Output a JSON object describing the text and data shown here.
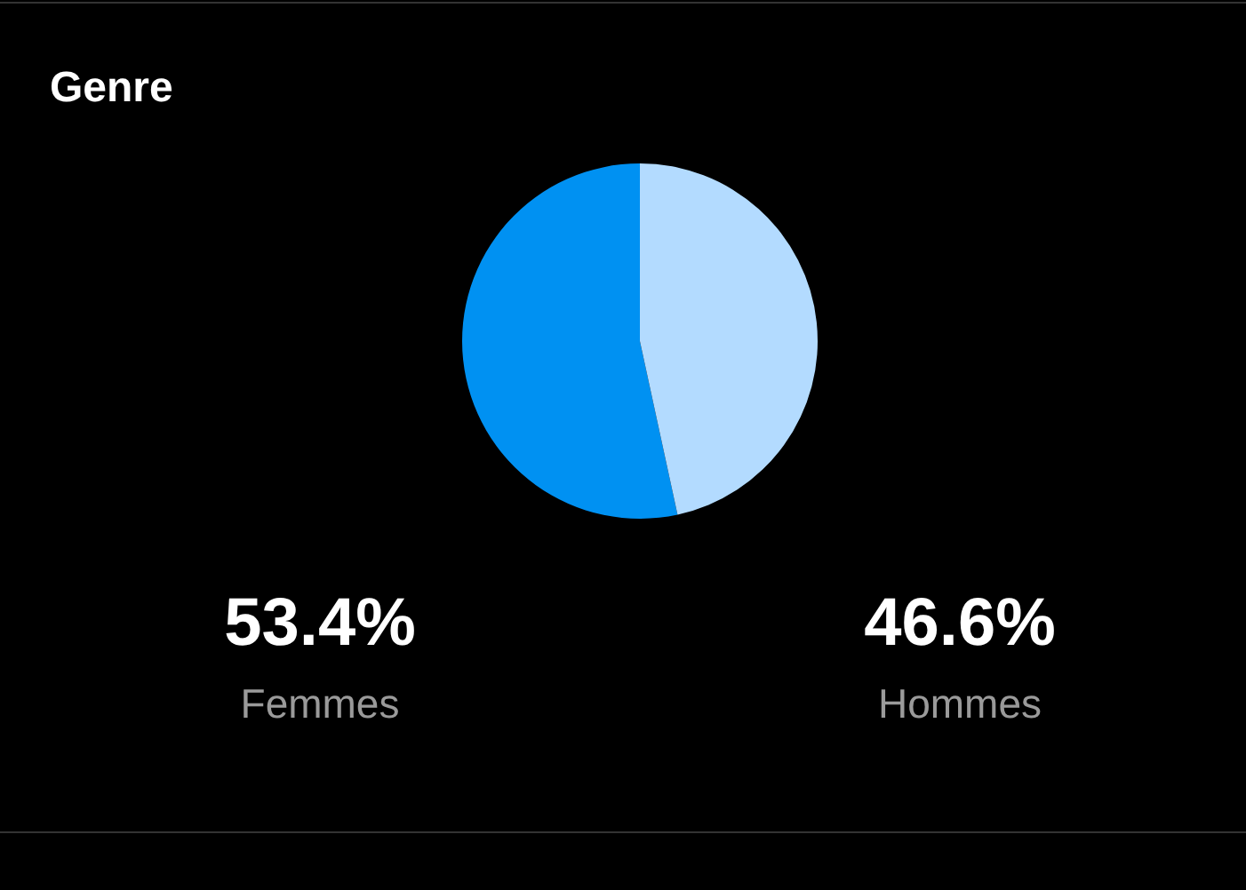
{
  "chart_data": {
    "type": "pie",
    "title": "Genre",
    "categories": [
      "Femmes",
      "Hommes"
    ],
    "values": [
      53.4,
      46.6
    ],
    "colors": [
      "#0091f2",
      "#b3dbff"
    ],
    "value_labels": [
      "53.4%",
      "46.6%"
    ],
    "legend": false
  }
}
